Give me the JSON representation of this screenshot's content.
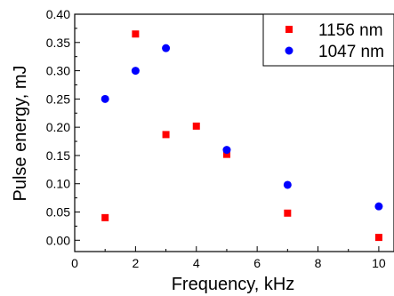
{
  "chart_data": {
    "type": "scatter",
    "xlabel": "Frequency, kHz",
    "ylabel": "Pulse energy, mJ",
    "xlim": [
      0,
      10.5
    ],
    "ylim": [
      -0.02,
      0.4
    ],
    "x_ticks": [
      0,
      2,
      4,
      6,
      8,
      10
    ],
    "y_ticks": [
      0.0,
      0.05,
      0.1,
      0.15,
      0.2,
      0.25,
      0.3,
      0.35,
      0.4
    ],
    "x_tick_labels": [
      "0",
      "2",
      "4",
      "6",
      "8",
      "10"
    ],
    "y_tick_labels": [
      "0.00",
      "0.05",
      "0.10",
      "0.15",
      "0.20",
      "0.25",
      "0.30",
      "0.35",
      "0.40"
    ],
    "grid": false,
    "legend_position": "top-right",
    "series": [
      {
        "name": "1156 nm",
        "marker": "square",
        "color": "#ff0000",
        "x": [
          1,
          2,
          3,
          4,
          5,
          7,
          10
        ],
        "y": [
          0.04,
          0.365,
          0.187,
          0.202,
          0.152,
          0.048,
          0.005
        ]
      },
      {
        "name": "1047 nm",
        "marker": "circle",
        "color": "#0000ff",
        "x": [
          1,
          2,
          3,
          5,
          7,
          10
        ],
        "y": [
          0.25,
          0.3,
          0.34,
          0.16,
          0.098,
          0.06
        ]
      }
    ]
  }
}
